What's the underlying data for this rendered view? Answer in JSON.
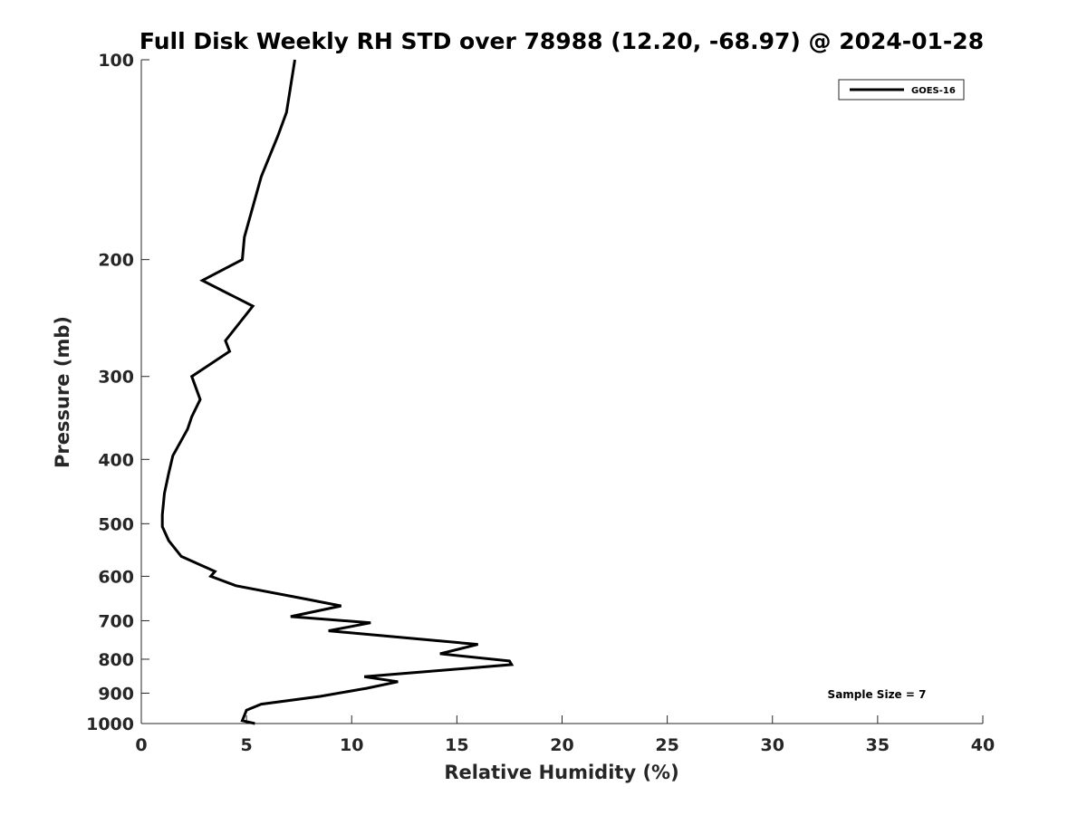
{
  "chart_data": {
    "type": "line",
    "title": "Full Disk Weekly RH STD over 78988 (12.20, -68.97) @ 2024-01-28",
    "xlabel": "Relative Humidity (%)",
    "ylabel": "Pressure (mb)",
    "xlim": [
      0,
      40
    ],
    "ylim": [
      100,
      1000
    ],
    "y_scale": "log",
    "y_reversed": true,
    "grid": false,
    "legend_position": "top-right",
    "x_ticks": [
      0,
      5,
      10,
      15,
      20,
      25,
      30,
      35,
      40
    ],
    "y_ticks": [
      100,
      200,
      300,
      400,
      500,
      600,
      700,
      800,
      900,
      1000
    ],
    "annotation": "Sample Size = 7",
    "series": [
      {
        "name": "GOES-16",
        "color": "#000000",
        "x": [
          5.4,
          4.8,
          5.0,
          5.7,
          8.5,
          10.7,
          12.2,
          10.6,
          17.6,
          17.5,
          14.2,
          16.0,
          13.0,
          8.9,
          10.9,
          7.1,
          9.5,
          7.9,
          4.5,
          3.3,
          3.5,
          1.9,
          1.3,
          1.0,
          1.0,
          1.1,
          1.3,
          1.5,
          2.2,
          2.4,
          2.8,
          2.4,
          4.2,
          4.0,
          5.3,
          2.9,
          4.8,
          4.9,
          5.7,
          6.5,
          6.9,
          7.3
        ],
        "y": [
          1000,
          990,
          955,
          935,
          910,
          885,
          865,
          850,
          815,
          805,
          785,
          760,
          745,
          725,
          705,
          690,
          665,
          650,
          620,
          600,
          590,
          560,
          530,
          505,
          485,
          450,
          420,
          395,
          360,
          345,
          325,
          300,
          275,
          265,
          235,
          215,
          200,
          185,
          150,
          130,
          120,
          100
        ]
      }
    ]
  }
}
